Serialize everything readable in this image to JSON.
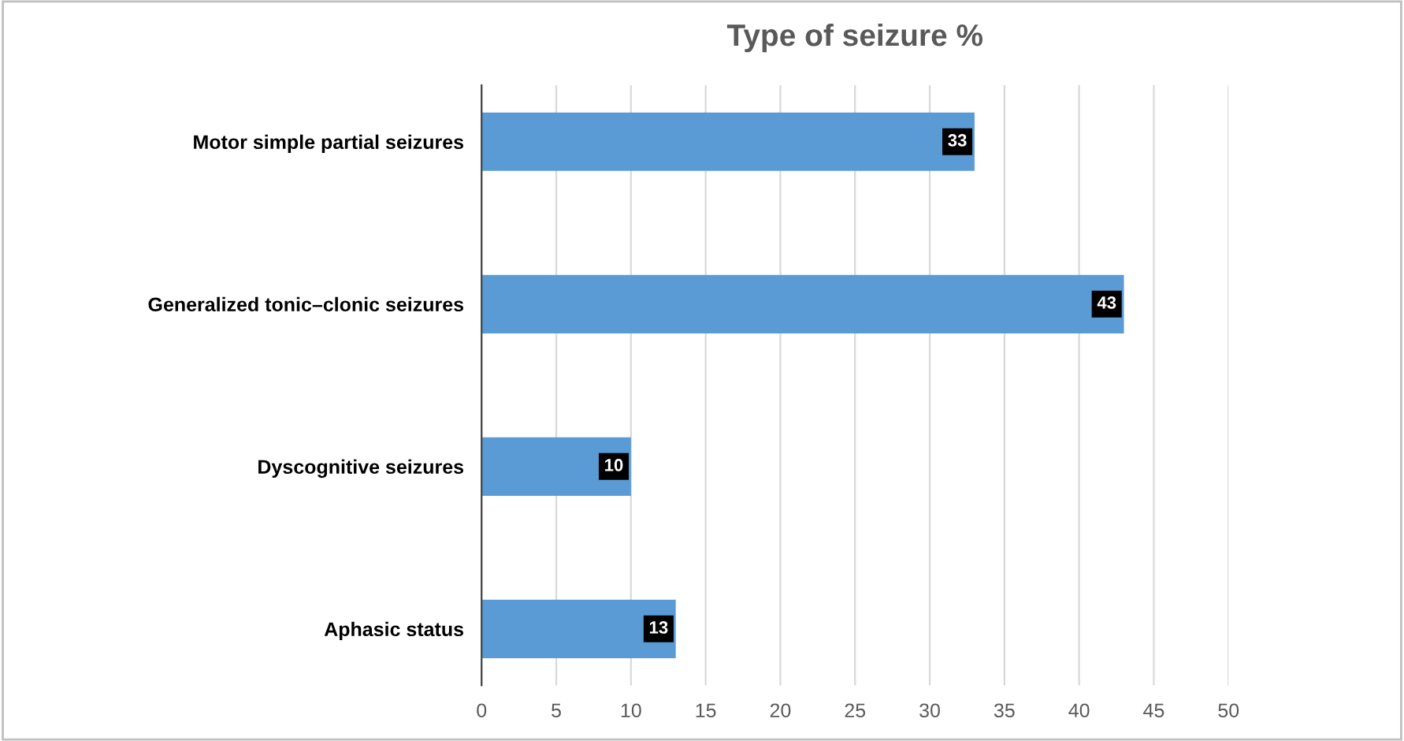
{
  "chart_data": {
    "type": "bar",
    "orientation": "horizontal",
    "title": "Type of seizure %",
    "categories": [
      "Motor simple partial seizures",
      "Generalized tonic–clonic seizures",
      "Dyscognitive seizures",
      "Aphasic status"
    ],
    "values": [
      33,
      43,
      10,
      13
    ],
    "color": "#5b9bd5",
    "xlim": [
      0,
      50
    ],
    "xticks": [
      0,
      5,
      10,
      15,
      20,
      25,
      30,
      35,
      40,
      45,
      50
    ],
    "grid": "x",
    "data_labels": true
  }
}
